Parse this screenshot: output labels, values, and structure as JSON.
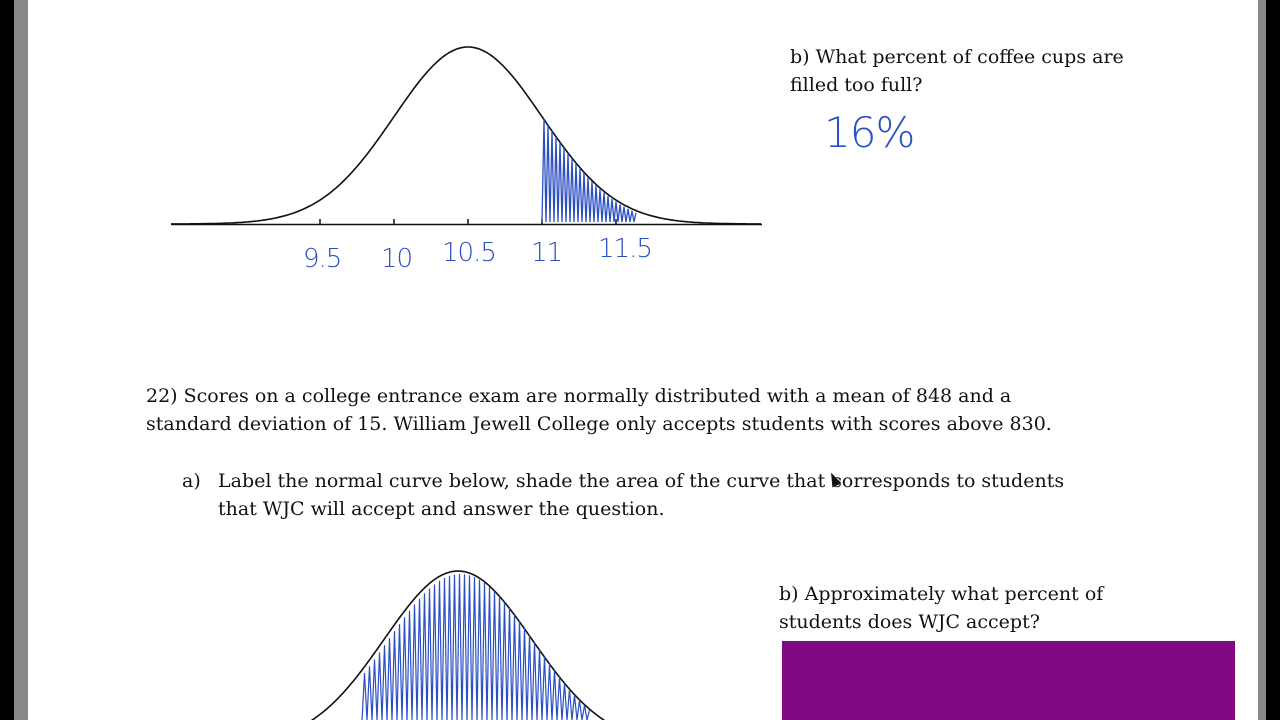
{
  "q21": {
    "part_b_line1": "b) What percent of coffee cups are",
    "part_b_line2": "filled too full?",
    "answer": "16%",
    "axis_labels": [
      "9.5",
      "10",
      "10.5",
      "11",
      "11.5"
    ]
  },
  "q22": {
    "line1": "22) Scores on a college entrance exam are normally distributed with a mean of 848 and a",
    "line2": "standard deviation of 15. William Jewell College only accepts students with scores above 830.",
    "part_a_marker": "a)",
    "part_a_line1": "Label the normal curve below, shade the area of the curve that corresponds to students",
    "part_a_line2": "that WJC will accept and answer the question.",
    "part_b_line1": "b) Approximately what percent of",
    "part_b_line2": "students does WJC accept?"
  },
  "colors": {
    "ink": "#2b4fc4",
    "answer_cover": "#800880"
  }
}
